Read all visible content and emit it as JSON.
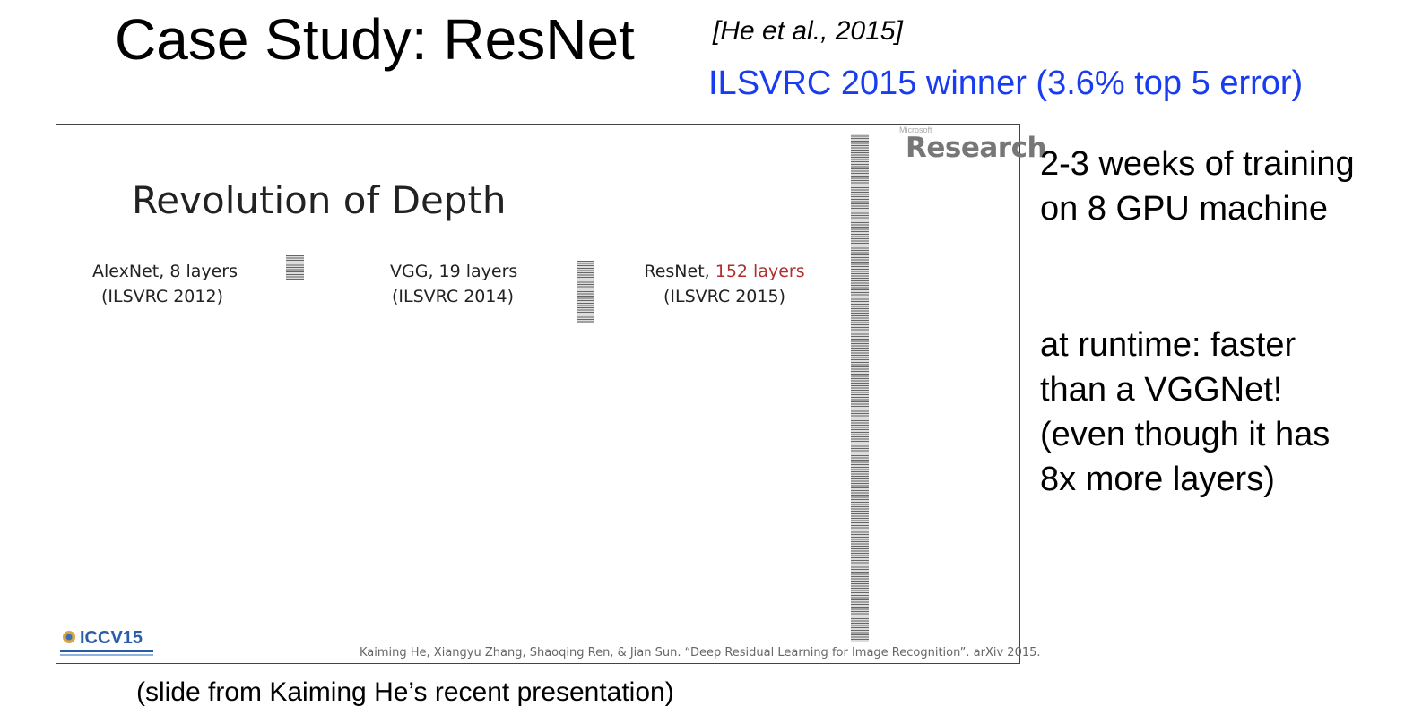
{
  "header": {
    "title": "Case Study: ResNet",
    "citation": "[He et al., 2015]",
    "subtitle": "ILSVRC 2015 winner (3.6% top 5 error)"
  },
  "slide": {
    "brand_small": "Microsoft",
    "brand": "Research",
    "heading": "Revolution of Depth",
    "networks": [
      {
        "name": "AlexNet, ",
        "layers": "8 layers",
        "competition": "(ILSVRC 2012)"
      },
      {
        "name": "VGG, ",
        "layers": "19 layers",
        "competition": "(ILSVRC 2014)"
      },
      {
        "name": "ResNet, ",
        "layers": "152 layers",
        "competition": "(ILSVRC 2015)"
      }
    ],
    "footer_citation": "Kaiming He, Xiangyu Zhang, Shaoqing Ren, & Jian Sun. “Deep Residual Learning for Image Recognition”. arXiv 2015.",
    "conference_logo": "ICCV15",
    "accent_color": "#b03030"
  },
  "side_notes": {
    "training": [
      "2-3 weeks of training",
      "on 8 GPU machine"
    ],
    "runtime": [
      "at runtime: faster",
      "than a VGGNet!",
      "(even though it has",
      "8x more layers)"
    ]
  },
  "caption": "(slide from Kaiming He’s recent presentation)",
  "colors": {
    "subtitle": "#1a3cf0"
  }
}
